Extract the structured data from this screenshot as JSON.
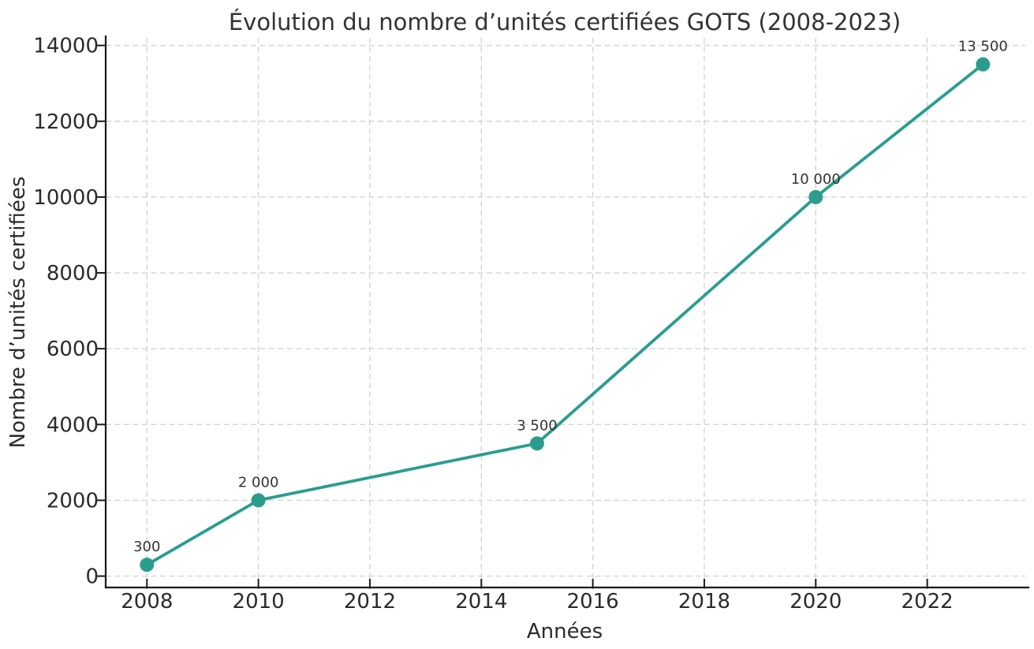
{
  "chart_data": {
    "type": "line",
    "title": "Évolution du nombre d’unités certifiées GOTS (2008-2023)",
    "xlabel": "Années",
    "ylabel": "Nombre d’unités certifiées",
    "x": [
      2008,
      2010,
      2015,
      2020,
      2023
    ],
    "y": [
      300,
      2000,
      3500,
      10000,
      13500
    ],
    "point_labels": [
      "300",
      "2 000",
      "3 500",
      "10 000",
      "13 500"
    ],
    "x_ticks": [
      2008,
      2010,
      2012,
      2014,
      2016,
      2018,
      2020,
      2022
    ],
    "y_ticks": [
      0,
      2000,
      4000,
      6000,
      8000,
      10000,
      12000,
      14000
    ],
    "xlim": [
      2007.26,
      2023.76
    ],
    "ylim": [
      -300,
      14200
    ],
    "grid": true,
    "grid_style": "dashed",
    "legend": null,
    "line_color": "#2a9d8f",
    "marker": "circle",
    "grid_color": "#d4d4d4",
    "axis_color": "#1a1a1a",
    "background_color": "#ffffff"
  }
}
